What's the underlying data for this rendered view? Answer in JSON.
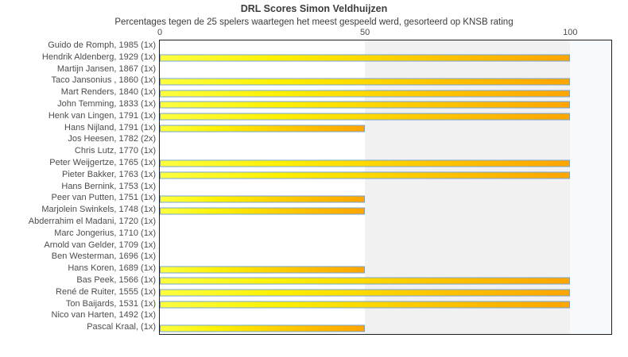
{
  "chart_data": {
    "type": "bar",
    "orientation": "horizontal",
    "title": "DRL Scores Simon Veldhuijzen",
    "subtitle": "Percentages tegen de 25 spelers waartegen het meest gespeeld werd, gesorteerd op KNSB rating",
    "xlabel": "",
    "ylabel": "",
    "xlim": [
      0,
      110
    ],
    "xtick_labels": [
      "0",
      "50",
      "100"
    ],
    "xtick_values": [
      0,
      50,
      100
    ],
    "grid": "off",
    "legend": "none",
    "categories": [
      "Guido de Romph, 1985 (1x)",
      "Hendrik Aldenberg, 1929 (1x)",
      "Martijn Jansen, 1867 (1x)",
      "Taco Jansonius , 1860 (1x)",
      "Mart Renders, 1840 (1x)",
      "John Temming, 1833 (1x)",
      "Henk van Lingen, 1791 (1x)",
      "Hans Nijland, 1791 (1x)",
      "Jos Heesen, 1782 (2x)",
      "Chris Lutz, 1770 (1x)",
      "Peter Weijgertze, 1765 (1x)",
      "Pieter Bakker, 1763 (1x)",
      "Hans Bernink, 1753 (1x)",
      "Peer van Putten, 1751 (1x)",
      "Marjolein Swinkels, 1748 (1x)",
      "Abderrahim el Madani, 1720 (1x)",
      "Marc Jongerius, 1710 (1x)",
      "Arnold van Gelder, 1709 (1x)",
      "Ben Westerman, 1696 (1x)",
      "Hans Koren, 1689 (1x)",
      "Bas Peek, 1566 (1x)",
      "René de Ruiter, 1555 (1x)",
      "Ton Baijards, 1531 (1x)",
      "Nico van Harten, 1492 (1x)",
      "Pascal Kraal,  (1x)"
    ],
    "values": [
      0,
      100,
      0,
      100,
      100,
      100,
      100,
      50,
      0,
      0,
      100,
      100,
      0,
      50,
      50,
      0,
      0,
      0,
      0,
      50,
      100,
      100,
      100,
      0,
      50
    ],
    "bands": [
      {
        "from": 0,
        "to": 50,
        "color": "#ffffff"
      },
      {
        "from": 50,
        "to": 100,
        "color": "#f1f1f1"
      },
      {
        "from": 100,
        "to": 110,
        "color": "#f7fafd"
      }
    ],
    "colors": {
      "bar_gradient_start": "#ffff40",
      "bar_gradient_end": "#ffa500",
      "bar_border": "#74a3d4",
      "plot_border": "#1f1f1f",
      "text": "#3d3d3d",
      "tick_text": "#4c4c4c"
    }
  }
}
